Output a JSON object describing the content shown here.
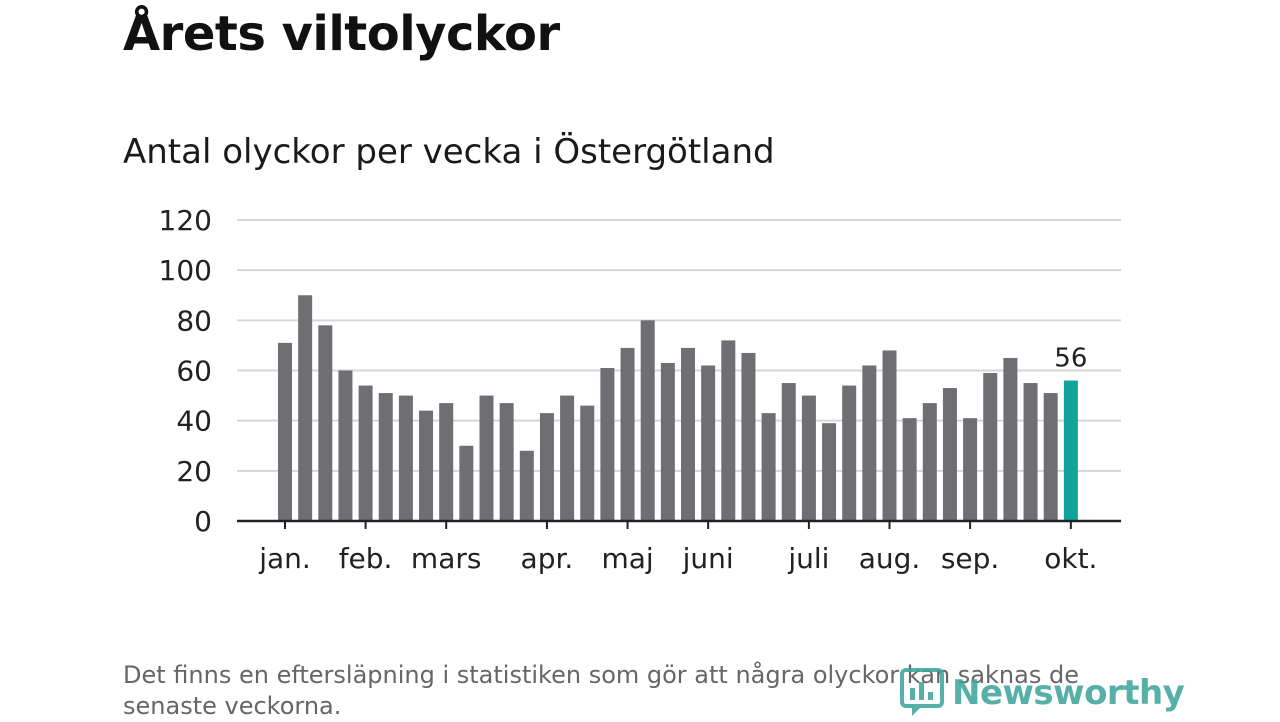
{
  "header": {
    "title": "Årets viltolyckor",
    "subtitle": "Antal olyckor per vecka i Östergötland"
  },
  "footer": {
    "note": "Det finns en eftersläpning i statistiken som gör att några olyckor kan saknas de senaste veckorna.",
    "brand": "Newsworthy"
  },
  "colors": {
    "bar": "#6f6e73",
    "highlight": "#12a39a",
    "grid": "#d6d6d6",
    "axis": "#222222"
  },
  "chart_data": {
    "type": "bar",
    "title": "Antal olyckor per vecka i Östergötland",
    "xlabel": "",
    "ylabel": "",
    "ylim": [
      0,
      120
    ],
    "yticks": [
      0,
      20,
      40,
      60,
      80,
      100,
      120
    ],
    "grid": true,
    "month_labels": [
      {
        "label": "jan.",
        "week": 1
      },
      {
        "label": "feb.",
        "week": 5
      },
      {
        "label": "mars",
        "week": 9
      },
      {
        "label": "apr.",
        "week": 14
      },
      {
        "label": "maj",
        "week": 18
      },
      {
        "label": "juni",
        "week": 22
      },
      {
        "label": "juli",
        "week": 27
      },
      {
        "label": "aug.",
        "week": 31
      },
      {
        "label": "sep.",
        "week": 35
      },
      {
        "label": "okt.",
        "week": 40
      }
    ],
    "weeks": [
      1,
      2,
      3,
      4,
      5,
      6,
      7,
      8,
      9,
      10,
      11,
      12,
      13,
      14,
      15,
      16,
      17,
      18,
      19,
      20,
      21,
      22,
      23,
      24,
      25,
      26,
      27,
      28,
      29,
      30,
      31,
      32,
      33,
      34,
      35,
      36,
      37,
      38,
      39,
      40
    ],
    "values": [
      71,
      90,
      78,
      60,
      54,
      51,
      50,
      44,
      47,
      30,
      50,
      47,
      28,
      43,
      50,
      46,
      61,
      69,
      80,
      63,
      69,
      62,
      72,
      67,
      43,
      55,
      50,
      39,
      54,
      62,
      68,
      41,
      47,
      53,
      41,
      59,
      65,
      55,
      51,
      56
    ],
    "highlight_index": 39,
    "highlight_label": "56"
  }
}
